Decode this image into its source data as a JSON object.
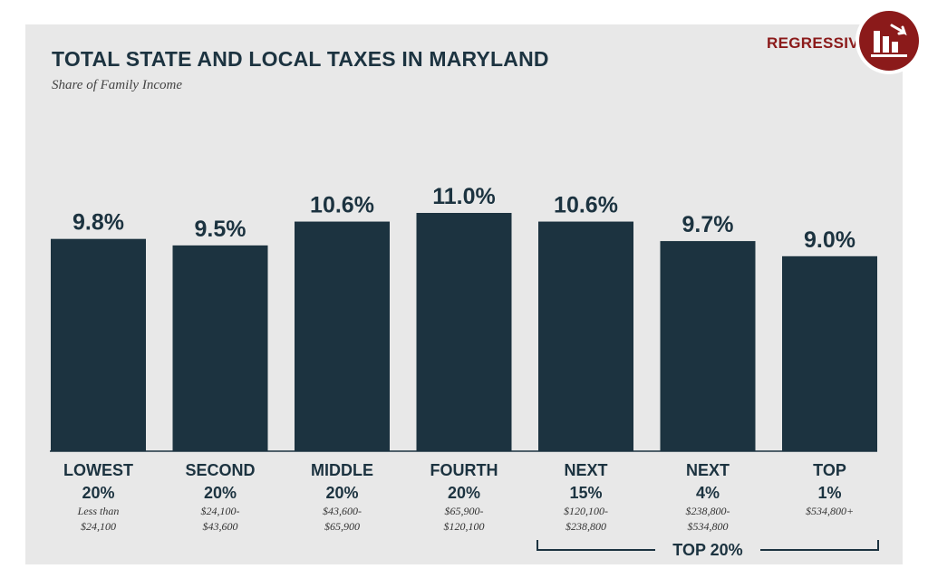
{
  "header": {
    "title": "TOTAL STATE AND LOCAL TAXES IN MARYLAND",
    "subtitle": "Share of Family Income",
    "badge_label": "REGRESSIVE",
    "badge_icon": "regressive-chart-icon"
  },
  "colors": {
    "bar": "#1c3340",
    "badge": "#8b1a1a",
    "panel": "#e8e8e8"
  },
  "chart_data": {
    "type": "bar",
    "title": "TOTAL STATE AND LOCAL TAXES IN MARYLAND",
    "subtitle": "Share of Family Income",
    "categories": [
      {
        "line1": "LOWEST",
        "line2": "20%",
        "range1": "Less than",
        "range2": "$24,100"
      },
      {
        "line1": "SECOND",
        "line2": "20%",
        "range1": "$24,100-",
        "range2": "$43,600"
      },
      {
        "line1": "MIDDLE",
        "line2": "20%",
        "range1": "$43,600-",
        "range2": "$65,900"
      },
      {
        "line1": "FOURTH",
        "line2": "20%",
        "range1": "$65,900-",
        "range2": "$120,100"
      },
      {
        "line1": "NEXT",
        "line2": "15%",
        "range1": "$120,100-",
        "range2": "$238,800"
      },
      {
        "line1": "NEXT",
        "line2": "4%",
        "range1": "$238,800-",
        "range2": "$534,800"
      },
      {
        "line1": "TOP",
        "line2": "1%",
        "range1": "$534,800+",
        "range2": ""
      }
    ],
    "values": [
      9.8,
      9.5,
      10.6,
      11.0,
      10.6,
      9.7,
      9.0
    ],
    "value_labels": [
      "9.8%",
      "9.5%",
      "10.6%",
      "11.0%",
      "10.6%",
      "9.7%",
      "9.0%"
    ],
    "ylim": [
      0,
      11.0
    ],
    "xlabel": "",
    "ylabel": "",
    "grid": false,
    "group_annotation": {
      "label": "TOP 20%",
      "from_index": 4,
      "to_index": 6
    }
  }
}
